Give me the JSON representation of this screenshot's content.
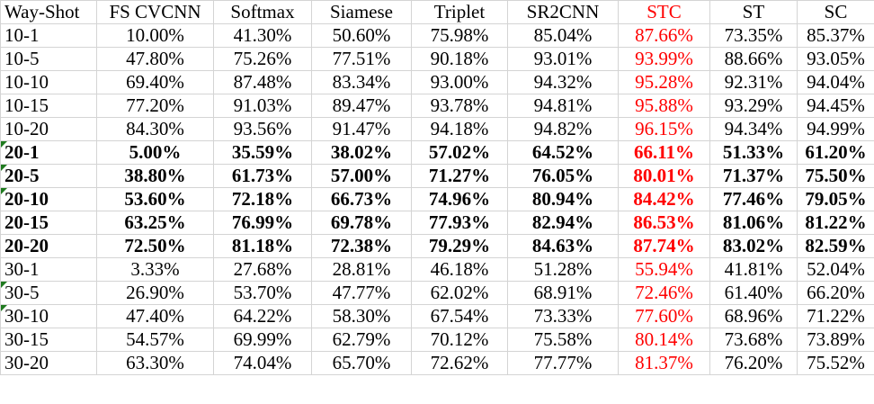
{
  "table": {
    "headers": [
      "Way-Shot",
      "FS CVCNN",
      "Softmax",
      "Siamese",
      "Triplet",
      "SR2CNN",
      "STC",
      "ST",
      "SC"
    ],
    "highlight_column_index": 6,
    "highlight_color": "#ff0000",
    "rows": [
      {
        "cells": [
          "10-1",
          "10.00%",
          "41.30%",
          "50.60%",
          "75.98%",
          "85.04%",
          "87.66%",
          "73.35%",
          "85.37%"
        ],
        "bold": false,
        "flag": false
      },
      {
        "cells": [
          "10-5",
          "47.80%",
          "75.26%",
          "77.51%",
          "90.18%",
          "93.01%",
          "93.99%",
          "88.66%",
          "93.05%"
        ],
        "bold": false,
        "flag": false
      },
      {
        "cells": [
          "10-10",
          "69.40%",
          "87.48%",
          "83.34%",
          "93.00%",
          "94.32%",
          "95.28%",
          "92.31%",
          "94.04%"
        ],
        "bold": false,
        "flag": false
      },
      {
        "cells": [
          "10-15",
          "77.20%",
          "91.03%",
          "89.47%",
          "93.78%",
          "94.81%",
          "95.88%",
          "93.29%",
          "94.45%"
        ],
        "bold": false,
        "flag": false
      },
      {
        "cells": [
          "10-20",
          "84.30%",
          "93.56%",
          "91.47%",
          "94.18%",
          "94.82%",
          "96.15%",
          "94.34%",
          "94.99%"
        ],
        "bold": false,
        "flag": false
      },
      {
        "cells": [
          "20-1",
          "5.00%",
          "35.59%",
          "38.02%",
          "57.02%",
          "64.52%",
          "66.11%",
          "51.33%",
          "61.20%"
        ],
        "bold": true,
        "flag": true
      },
      {
        "cells": [
          "20-5",
          "38.80%",
          "61.73%",
          "57.00%",
          "71.27%",
          "76.05%",
          "80.01%",
          "71.37%",
          "75.50%"
        ],
        "bold": true,
        "flag": true
      },
      {
        "cells": [
          "20-10",
          "53.60%",
          "72.18%",
          "66.73%",
          "74.96%",
          "80.94%",
          "84.42%",
          "77.46%",
          "79.05%"
        ],
        "bold": true,
        "flag": true
      },
      {
        "cells": [
          "20-15",
          "63.25%",
          "76.99%",
          "69.78%",
          "77.93%",
          "82.94%",
          "86.53%",
          "81.06%",
          "81.22%"
        ],
        "bold": true,
        "flag": false
      },
      {
        "cells": [
          "20-20",
          "72.50%",
          "81.18%",
          "72.38%",
          "79.29%",
          "84.63%",
          "87.74%",
          "83.02%",
          "82.59%"
        ],
        "bold": true,
        "flag": false
      },
      {
        "cells": [
          "30-1",
          "3.33%",
          "27.68%",
          "28.81%",
          "46.18%",
          "51.28%",
          "55.94%",
          "41.81%",
          "52.04%"
        ],
        "bold": false,
        "flag": false
      },
      {
        "cells": [
          "30-5",
          "26.90%",
          "53.70%",
          "47.77%",
          "62.02%",
          "68.91%",
          "72.46%",
          "61.40%",
          "66.20%"
        ],
        "bold": false,
        "flag": true
      },
      {
        "cells": [
          "30-10",
          "47.40%",
          "64.22%",
          "58.30%",
          "67.54%",
          "73.33%",
          "77.60%",
          "68.96%",
          "71.22%"
        ],
        "bold": false,
        "flag": true
      },
      {
        "cells": [
          "30-15",
          "54.57%",
          "69.99%",
          "62.79%",
          "70.12%",
          "75.58%",
          "80.14%",
          "73.68%",
          "73.89%"
        ],
        "bold": false,
        "flag": false
      },
      {
        "cells": [
          "30-20",
          "63.30%",
          "74.04%",
          "65.70%",
          "72.62%",
          "77.77%",
          "81.37%",
          "76.20%",
          "75.52%"
        ],
        "bold": false,
        "flag": false
      }
    ]
  }
}
